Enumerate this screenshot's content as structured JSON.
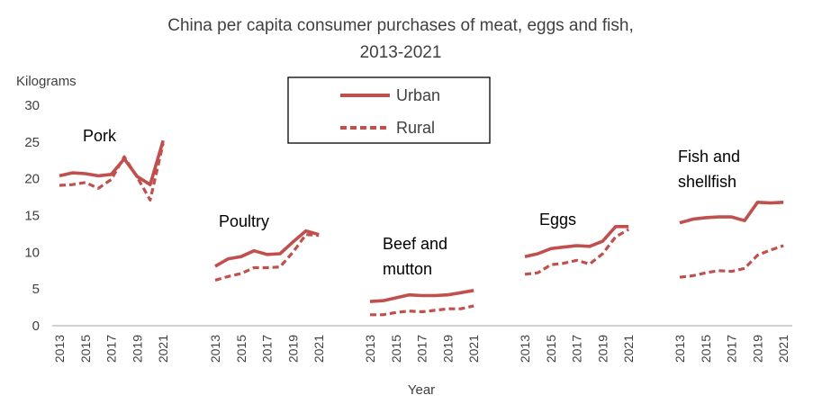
{
  "chart_data": {
    "type": "line",
    "title_line1": "China per capita consumer purchases of meat, eggs and fish,",
    "title_line2": "2013-2021",
    "ylabel": "Kilograms",
    "xlabel": "Year",
    "ylim": [
      0,
      30
    ],
    "yticks": [
      0,
      5,
      10,
      15,
      20,
      25,
      30
    ],
    "grid": false,
    "legend_position": "top-center",
    "colors": {
      "line": "#C0504D",
      "text": "#404040",
      "axis": "#A6A6A6"
    },
    "x": [
      2013,
      2014,
      2015,
      2016,
      2017,
      2018,
      2019,
      2020,
      2021
    ],
    "xtick_labels": [
      "2013",
      "2015",
      "2017",
      "2019",
      "2021"
    ],
    "legend": [
      {
        "name": "Urban",
        "style": "solid"
      },
      {
        "name": "Rural",
        "style": "dashed"
      }
    ],
    "groups": [
      {
        "label_lines": [
          "Pork"
        ],
        "urban": [
          20.4,
          20.8,
          20.7,
          20.4,
          20.6,
          22.7,
          20.3,
          19.2,
          25.2
        ],
        "rural": [
          19.1,
          19.2,
          19.5,
          18.7,
          19.9,
          23.0,
          20.2,
          17.1,
          24.8
        ]
      },
      {
        "label_lines": [
          "Poultry"
        ],
        "urban": [
          8.1,
          9.1,
          9.4,
          10.2,
          9.7,
          9.8,
          11.4,
          12.9,
          12.4
        ],
        "rural": [
          6.2,
          6.7,
          7.1,
          7.9,
          7.9,
          8.0,
          10.0,
          12.4,
          12.3
        ]
      },
      {
        "label_lines": [
          "Beef and",
          "mutton"
        ],
        "urban": [
          3.3,
          3.4,
          3.8,
          4.2,
          4.1,
          4.1,
          4.2,
          4.5,
          4.8
        ],
        "rural": [
          1.5,
          1.5,
          1.8,
          2.0,
          1.9,
          2.1,
          2.3,
          2.3,
          2.7
        ]
      },
      {
        "label_lines": [
          "Eggs"
        ],
        "urban": [
          9.4,
          9.8,
          10.5,
          10.7,
          10.9,
          10.8,
          11.5,
          13.5,
          13.5
        ],
        "rural": [
          7.0,
          7.2,
          8.3,
          8.5,
          8.9,
          8.4,
          9.8,
          12.1,
          13.1
        ]
      },
      {
        "label_lines": [
          "Fish and",
          "shellfish"
        ],
        "urban": [
          14.0,
          14.5,
          14.7,
          14.8,
          14.8,
          14.3,
          16.8,
          16.7,
          16.8
        ],
        "rural": [
          6.6,
          6.8,
          7.2,
          7.5,
          7.4,
          7.8,
          9.6,
          10.3,
          10.9
        ]
      }
    ]
  }
}
